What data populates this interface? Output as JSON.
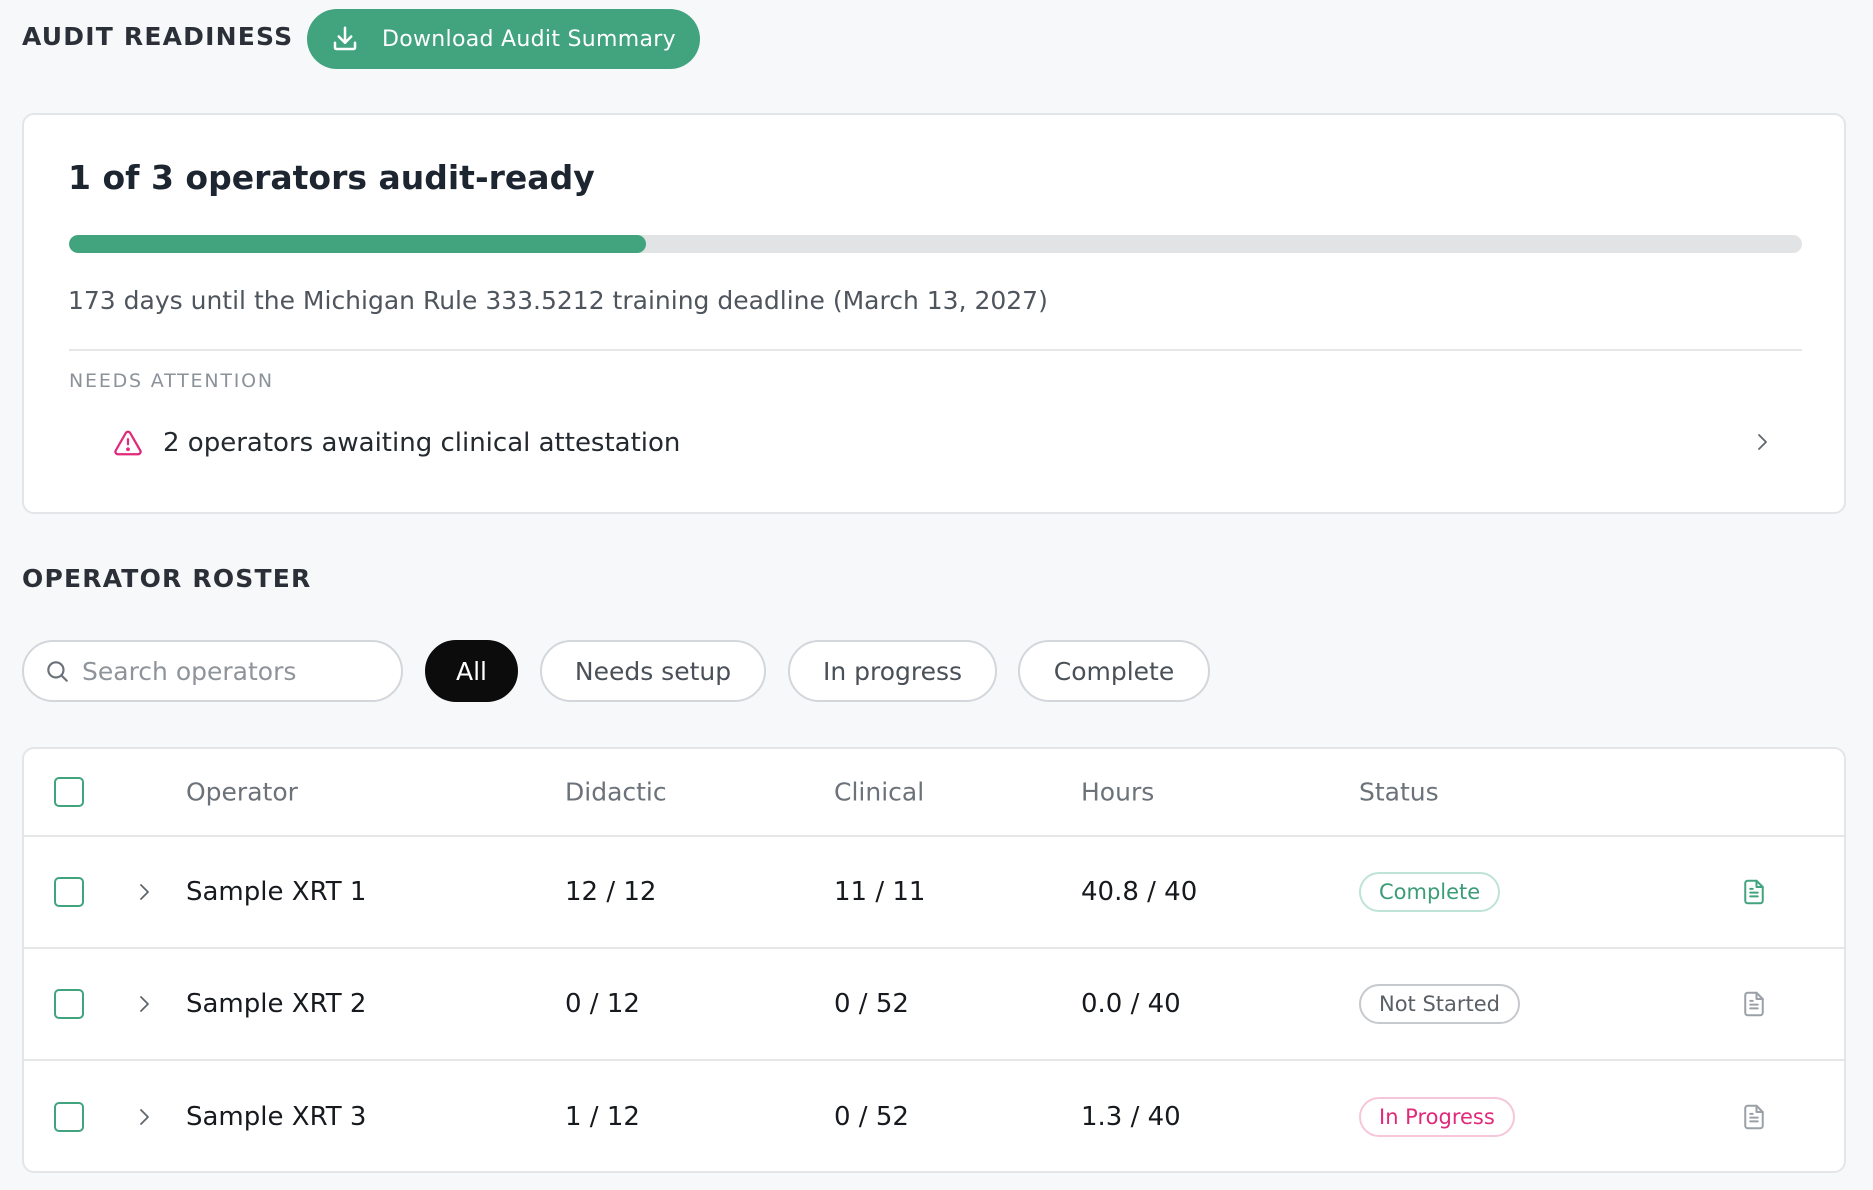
{
  "header": {
    "title": "AUDIT READINESS",
    "download_label": "Download Audit Summary"
  },
  "summary": {
    "heading": "1 of 3 operators audit-ready",
    "progress_fraction": 0.333,
    "deadline_text": "173 days until the Michigan Rule 333.5212 training deadline (March 13, 2027)",
    "attention_label": "NEEDS ATTENTION",
    "attention_item": "2 operators awaiting clinical attestation"
  },
  "roster": {
    "title": "OPERATOR ROSTER",
    "search_placeholder": "Search operators",
    "filters": [
      "All",
      "Needs setup",
      "In progress",
      "Complete"
    ],
    "active_filter": "All",
    "columns": [
      "Operator",
      "Didactic",
      "Clinical",
      "Hours",
      "Status"
    ],
    "rows": [
      {
        "name": "Sample XRT 1",
        "didactic": "12 / 12",
        "clinical": "11 / 11",
        "hours": "40.8 / 40",
        "status": "Complete"
      },
      {
        "name": "Sample XRT 2",
        "didactic": "0 / 12",
        "clinical": "0 / 52",
        "hours": "0.0 / 40",
        "status": "Not Started"
      },
      {
        "name": "Sample XRT 3",
        "didactic": "1 / 12",
        "clinical": "0 / 52",
        "hours": "1.3 / 40",
        "status": "In Progress"
      }
    ]
  },
  "colors": {
    "accent": "#42a37f",
    "warning": "#e0297a",
    "active_chip": "#0c0c0d"
  },
  "icons": {
    "download": "download-icon",
    "warning": "warning-triangle-icon",
    "chevron": "chevron-right-icon",
    "search": "search-icon",
    "document": "document-icon"
  }
}
